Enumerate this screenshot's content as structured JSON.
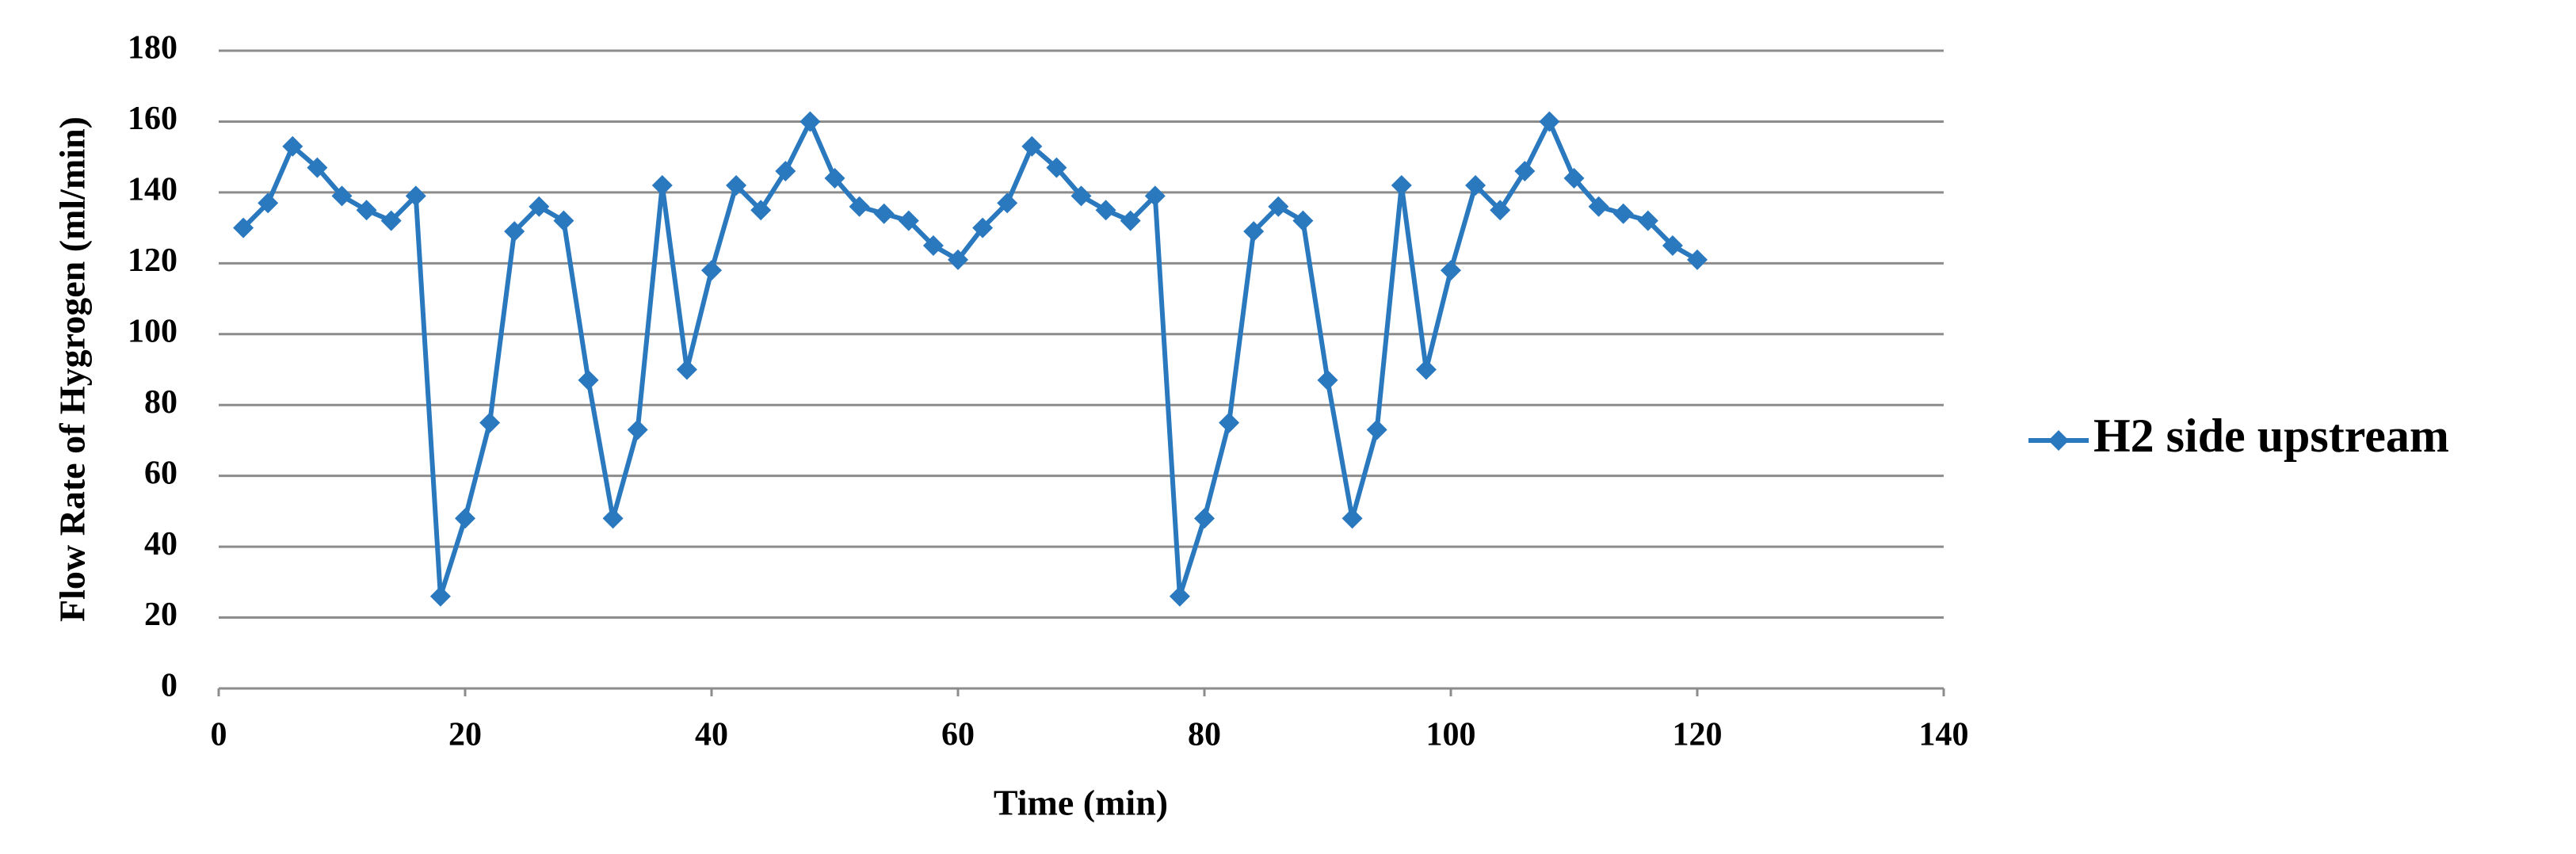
{
  "chart_data": {
    "type": "line",
    "xlabel": "Time (min)",
    "ylabel": "Flow Rate of Hygrogen (ml/min)",
    "x": [
      2,
      4,
      6,
      8,
      10,
      12,
      14,
      16,
      18,
      20,
      22,
      24,
      26,
      28,
      30,
      32,
      34,
      36,
      38,
      40,
      42,
      44,
      46,
      48,
      50,
      52,
      54,
      56,
      58,
      60,
      62,
      64,
      66,
      68,
      70,
      72,
      74,
      76,
      78,
      80,
      82,
      84,
      86,
      88,
      90,
      92,
      94,
      96,
      98,
      100,
      102,
      104,
      106,
      108,
      110,
      112,
      114,
      116,
      118,
      120
    ],
    "series": [
      {
        "name": "H2 side upstream",
        "color": "#2a78be",
        "values": [
          130,
          137,
          153,
          147,
          139,
          135,
          132,
          139,
          26,
          48,
          75,
          129,
          136,
          132,
          87,
          48,
          73,
          142,
          90,
          118,
          142,
          135,
          146,
          160,
          144,
          136,
          134,
          132,
          125,
          121,
          130,
          137,
          153,
          147,
          139,
          135,
          132,
          139,
          26,
          48,
          75,
          129,
          136,
          132,
          87,
          48,
          73,
          142,
          90,
          118,
          142,
          135,
          146,
          160,
          144,
          136,
          134,
          132,
          125,
          121
        ]
      }
    ],
    "xlim": [
      0,
      140
    ],
    "xticks": [
      0,
      20,
      40,
      60,
      80,
      100,
      120,
      140
    ],
    "ylim": [
      0,
      180
    ],
    "yticks": [
      0,
      20,
      40,
      60,
      80,
      100,
      120,
      140,
      160,
      180
    ],
    "grid": true,
    "legend": "right"
  }
}
